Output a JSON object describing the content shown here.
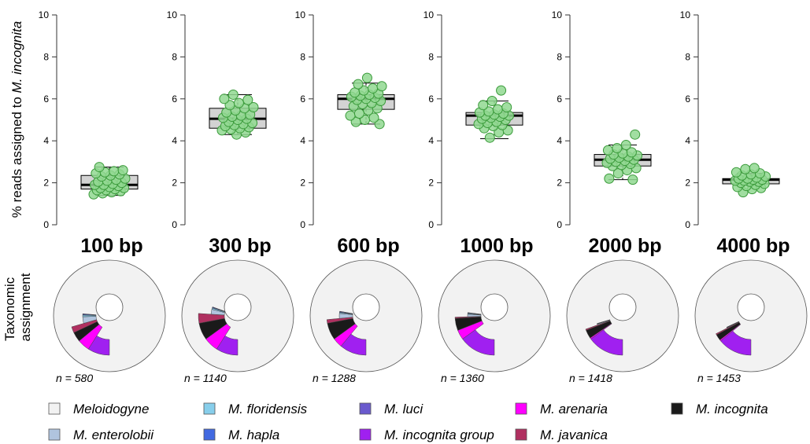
{
  "y_axis_label": "% reads assigned to M. incognita",
  "y_axis_label_parts": [
    "% reads assigned to ",
    "M. incognita"
  ],
  "pie_row_label": [
    "Taxonomic",
    "assignment"
  ],
  "chart_data": [
    {
      "type": "box",
      "ylim": [
        0,
        10
      ],
      "yticks": [
        0,
        2,
        4,
        6,
        8,
        10
      ],
      "grid": false,
      "panels": [
        {
          "label": "100 bp",
          "stats": {
            "whisker_low": 1.4,
            "q1": 1.7,
            "median": 1.9,
            "q3": 2.35,
            "whisker_high": 2.75
          },
          "points": [
            1.45,
            1.5,
            1.55,
            1.6,
            1.65,
            1.65,
            1.7,
            1.75,
            1.75,
            1.8,
            1.85,
            1.9,
            1.9,
            1.95,
            2.0,
            2.05,
            2.1,
            2.15,
            2.2,
            2.3,
            2.35,
            2.4,
            2.45,
            2.5,
            2.55,
            2.6,
            2.75
          ]
        },
        {
          "label": "300 bp",
          "stats": {
            "whisker_low": 4.3,
            "q1": 4.6,
            "median": 5.05,
            "q3": 5.55,
            "whisker_high": 6.2
          },
          "points": [
            4.3,
            4.4,
            4.5,
            4.55,
            4.6,
            4.65,
            4.7,
            4.75,
            4.8,
            4.85,
            4.9,
            5.0,
            5.05,
            5.1,
            5.15,
            5.2,
            5.25,
            5.35,
            5.45,
            5.55,
            5.6,
            5.7,
            5.8,
            5.95,
            6.0,
            6.2
          ]
        },
        {
          "label": "600 bp",
          "stats": {
            "whisker_low": 4.8,
            "q1": 5.5,
            "median": 6.0,
            "q3": 6.2,
            "whisker_high": 6.75
          },
          "points": [
            4.8,
            4.9,
            5.0,
            5.1,
            5.2,
            5.3,
            5.45,
            5.55,
            5.65,
            5.75,
            5.8,
            5.9,
            5.95,
            6.0,
            6.05,
            6.1,
            6.15,
            6.2,
            6.25,
            6.3,
            6.4,
            6.5,
            6.6,
            6.7,
            7.0
          ]
        },
        {
          "label": "1000 bp",
          "stats": {
            "whisker_low": 4.1,
            "q1": 4.75,
            "median": 5.2,
            "q3": 5.35,
            "whisker_high": 5.9
          },
          "points": [
            4.15,
            4.4,
            4.5,
            4.6,
            4.7,
            4.75,
            4.8,
            4.85,
            4.9,
            5.0,
            5.05,
            5.1,
            5.15,
            5.2,
            5.2,
            5.25,
            5.3,
            5.35,
            5.4,
            5.5,
            5.6,
            5.7,
            5.9,
            6.4
          ]
        },
        {
          "label": "2000 bp",
          "stats": {
            "whisker_low": 2.15,
            "q1": 2.8,
            "median": 3.1,
            "q3": 3.35,
            "whisker_high": 3.8
          },
          "points": [
            2.15,
            2.2,
            2.45,
            2.6,
            2.7,
            2.8,
            2.85,
            2.9,
            2.95,
            3.0,
            3.05,
            3.1,
            3.15,
            3.2,
            3.25,
            3.3,
            3.35,
            3.4,
            3.45,
            3.55,
            3.65,
            3.8,
            4.3
          ]
        },
        {
          "label": "4000 bp",
          "stats": {
            "whisker_low": 1.9,
            "q1": 1.95,
            "median": 2.15,
            "q3": 2.2,
            "whisker_high": 2.45
          },
          "points": [
            1.55,
            1.7,
            1.75,
            1.8,
            1.85,
            1.9,
            1.95,
            2.0,
            2.05,
            2.05,
            2.1,
            2.1,
            2.15,
            2.15,
            2.2,
            2.2,
            2.25,
            2.3,
            2.35,
            2.4,
            2.45,
            2.5,
            2.65,
            2.7
          ]
        }
      ]
    },
    {
      "type": "pie",
      "style": "donut",
      "categories": [
        "Meloidogyne",
        "M. incognita group",
        "M. arenaria",
        "M. incognita",
        "M. javanica",
        "M. enterolobii",
        "M. floridensis",
        "M. hapla",
        "M. luci"
      ],
      "series": [
        {
          "n_label": "n = 580",
          "values": [
            0.64,
            0.09,
            0.05,
            0.04,
            0.025,
            0.04,
            0.01,
            0.005,
            0.003
          ]
        },
        {
          "n_label": "n = 1140",
          "values": [
            0.6,
            0.09,
            0.06,
            0.07,
            0.04,
            0.03,
            0.008,
            0.004,
            0.003
          ]
        },
        {
          "n_label": "n = 1288",
          "values": [
            0.58,
            0.11,
            0.04,
            0.07,
            0.015,
            0.03,
            0.006,
            0.004,
            0.003
          ]
        },
        {
          "n_label": "n = 1360",
          "values": [
            0.675,
            0.15,
            0.04,
            0.05,
            0.005,
            0.015,
            0.005,
            0.003,
            0.002
          ]
        },
        {
          "n_label": "n = 1418",
          "values": [
            0.785,
            0.15,
            0.005,
            0.035,
            0.005,
            0.005,
            0.002,
            0.001,
            0.001
          ]
        },
        {
          "n_label": "n = 1453",
          "values": [
            0.81,
            0.14,
            0.005,
            0.025,
            0.005,
            0.003,
            0.001,
            0.001,
            0.001
          ]
        }
      ]
    }
  ],
  "legend": {
    "placement": "bottom",
    "items": [
      {
        "label": "Meloidogyne",
        "color": "#f2f2f2"
      },
      {
        "label": "M. floridensis",
        "color": "#87ceeb"
      },
      {
        "label": "M. luci",
        "color": "#6a5acd"
      },
      {
        "label": "M. arenaria",
        "color": "#ff00ff"
      },
      {
        "label": "M. incognita",
        "color": "#1a1a1a"
      },
      {
        "label": "M. enterolobii",
        "color": "#b0c4de"
      },
      {
        "label": "M. hapla",
        "color": "#4169e1"
      },
      {
        "label": "M. incognita group",
        "color": "#a020f0"
      },
      {
        "label": "M. javanica",
        "color": "#b03060"
      }
    ]
  },
  "colors": {
    "box_fill": "#d3d3d3",
    "point_fill": "#90d890",
    "point_stroke": "#3a9a3a"
  }
}
